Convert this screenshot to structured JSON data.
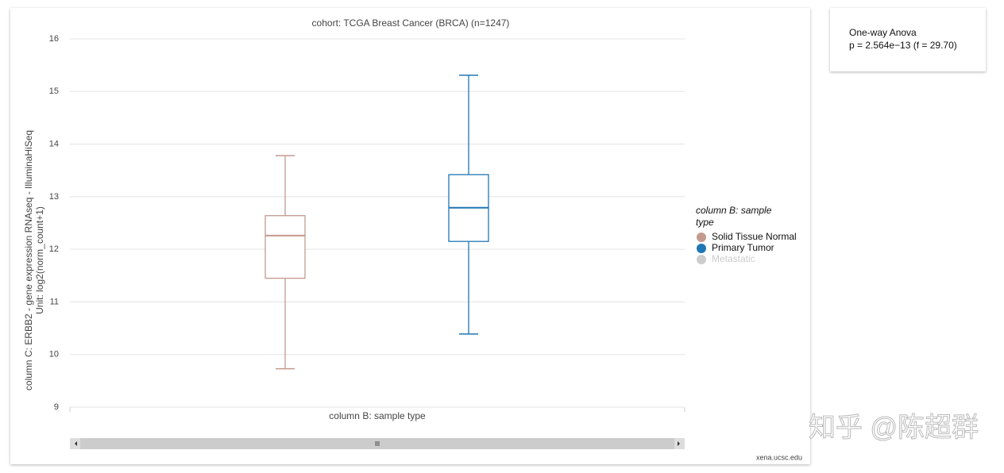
{
  "chart_data": {
    "type": "box",
    "title": "cohort: TCGA Breast Cancer (BRCA) (n=1247)",
    "y_label": [
      "column C: ERBB2 - gene expression RNAseq - IlluminaHiSeq",
      "Unit: log2(norm_count+1)"
    ],
    "x_label": "column B: sample type",
    "ylim": [
      9,
      16
    ],
    "yticks": [
      9,
      10,
      11,
      12,
      13,
      14,
      15,
      16
    ],
    "grid": true,
    "legend_title": "column B: sample type",
    "legend_position": "right",
    "series": [
      {
        "name": "Solid Tissue Normal",
        "color": "#c49a8e",
        "min": 9.73,
        "q1": 11.45,
        "median": 12.26,
        "q3": 12.64,
        "max": 13.78
      },
      {
        "name": "Primary Tumor",
        "color": "#1f77b4",
        "min": 10.39,
        "q1": 12.15,
        "median": 12.79,
        "q3": 13.42,
        "max": 15.31
      },
      {
        "name": "Metastatic",
        "color": "#cccccc"
      }
    ],
    "annotation": [
      "One-way Anova",
      "p = 2.564e−13 (f = 29.70)"
    ],
    "source": "xena.ucsc.edu",
    "watermark": "知乎 @陈超群"
  }
}
